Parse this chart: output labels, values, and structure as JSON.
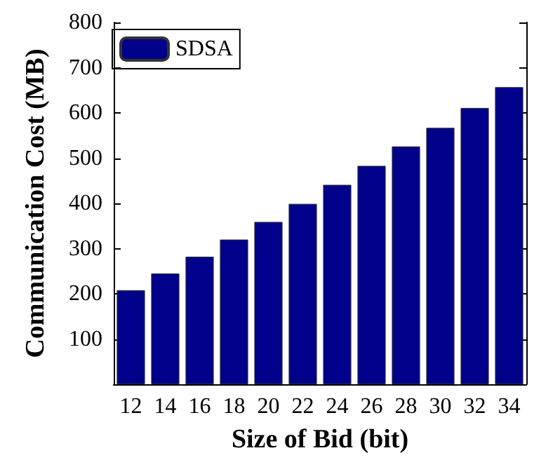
{
  "chart_data": {
    "type": "bar",
    "xlabel": "Size of Bid (bit)",
    "ylabel": "Communication Cost (MB)",
    "categories": [
      "12",
      "14",
      "16",
      "18",
      "20",
      "22",
      "24",
      "26",
      "28",
      "30",
      "32",
      "34"
    ],
    "series": [
      {
        "name": "SDSA",
        "color": "#00008b",
        "values": [
          208,
          245,
          282,
          320,
          359,
          399,
          441,
          483,
          526,
          567,
          611,
          657
        ]
      }
    ],
    "ylim": [
      0,
      800
    ],
    "yticks": [
      100,
      200,
      300,
      400,
      500,
      600,
      700,
      800
    ],
    "grid": false,
    "legend": "top left"
  }
}
